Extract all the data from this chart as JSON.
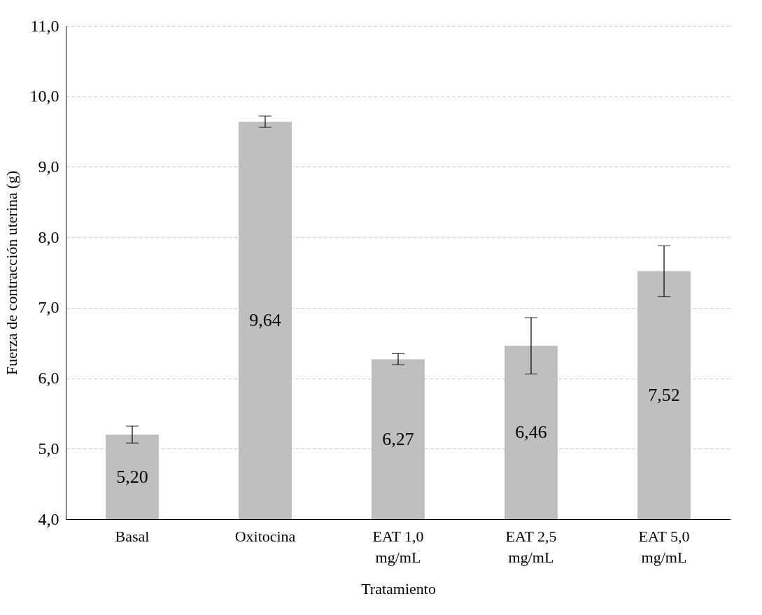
{
  "chart_data": {
    "type": "bar",
    "categories": [
      "Basal",
      "Oxitocina",
      "EAT 1,0 mg/mL",
      "EAT 2,5 mg/mL",
      "EAT 5,0 mg/mL"
    ],
    "values": [
      5.2,
      9.64,
      6.27,
      6.46,
      7.52
    ],
    "value_labels": [
      "5,20",
      "9,64",
      "6,27",
      "6,46",
      "7,52"
    ],
    "errors": [
      0.12,
      0.08,
      0.08,
      0.4,
      0.36
    ],
    "color": "#bfbfbf",
    "xlabel": "Tratamiento",
    "ylabel": "Fuerza de contracción uterina (g)",
    "ylim": [
      4,
      11
    ],
    "yticks": [
      {
        "value": 4,
        "label": "4,0"
      },
      {
        "value": 5,
        "label": "5,0"
      },
      {
        "value": 6,
        "label": "6,0"
      },
      {
        "value": 7,
        "label": "7,0"
      },
      {
        "value": 8,
        "label": "8,0"
      },
      {
        "value": 9,
        "label": "9,0"
      },
      {
        "value": 10,
        "label": "10,0"
      },
      {
        "value": 11,
        "label": "11,0"
      }
    ],
    "grid": "y"
  }
}
